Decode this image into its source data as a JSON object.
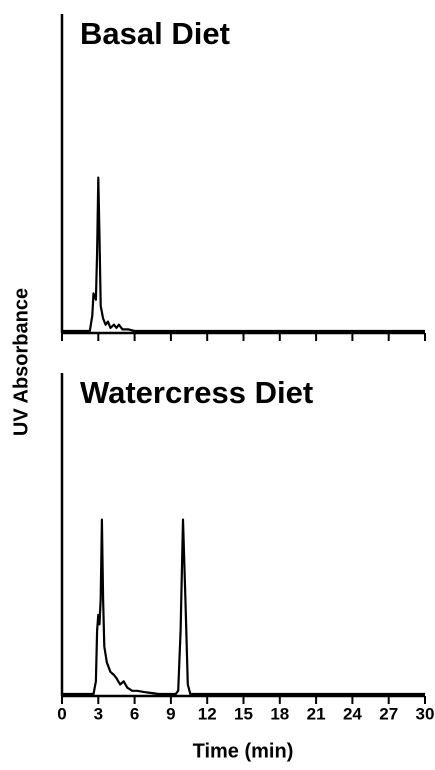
{
  "chart_data": {
    "type": "line",
    "ylabel": "UV Absorbance",
    "xlabel": "Time (min)",
    "xlim": [
      0,
      30
    ],
    "xticks": [
      0,
      3,
      6,
      9,
      12,
      15,
      18,
      21,
      24,
      27,
      30
    ],
    "ylim": [
      0,
      100
    ],
    "color": "#000000",
    "panels": [
      {
        "title": "Basal Diet",
        "x": [
          0,
          2.3,
          2.5,
          2.6,
          2.7,
          2.8,
          2.9,
          3.0,
          3.1,
          3.2,
          3.4,
          3.6,
          3.8,
          4.0,
          4.3,
          4.5,
          4.7,
          5.0,
          5.5,
          6,
          30
        ],
        "values": [
          0,
          0,
          5,
          12,
          11,
          10,
          25,
          49,
          30,
          8,
          4,
          2,
          3,
          1,
          2,
          1,
          2,
          0.5,
          0.5,
          0,
          0
        ]
      },
      {
        "title": "Watercress Diet",
        "x": [
          0,
          2.6,
          2.8,
          2.9,
          3.0,
          3.1,
          3.2,
          3.3,
          3.4,
          3.5,
          3.7,
          4.0,
          4.3,
          4.5,
          4.8,
          5.1,
          5.4,
          5.8,
          6.2,
          7,
          8,
          9.4,
          9.6,
          9.8,
          10.0,
          10.2,
          10.4,
          10.6,
          30
        ],
        "values": [
          0,
          0,
          4,
          20,
          25,
          22,
          30,
          55,
          30,
          15,
          10,
          7,
          6,
          5,
          3,
          4,
          2,
          1,
          1,
          0.5,
          0,
          0,
          1,
          20,
          55,
          30,
          3,
          0,
          0
        ]
      }
    ]
  }
}
